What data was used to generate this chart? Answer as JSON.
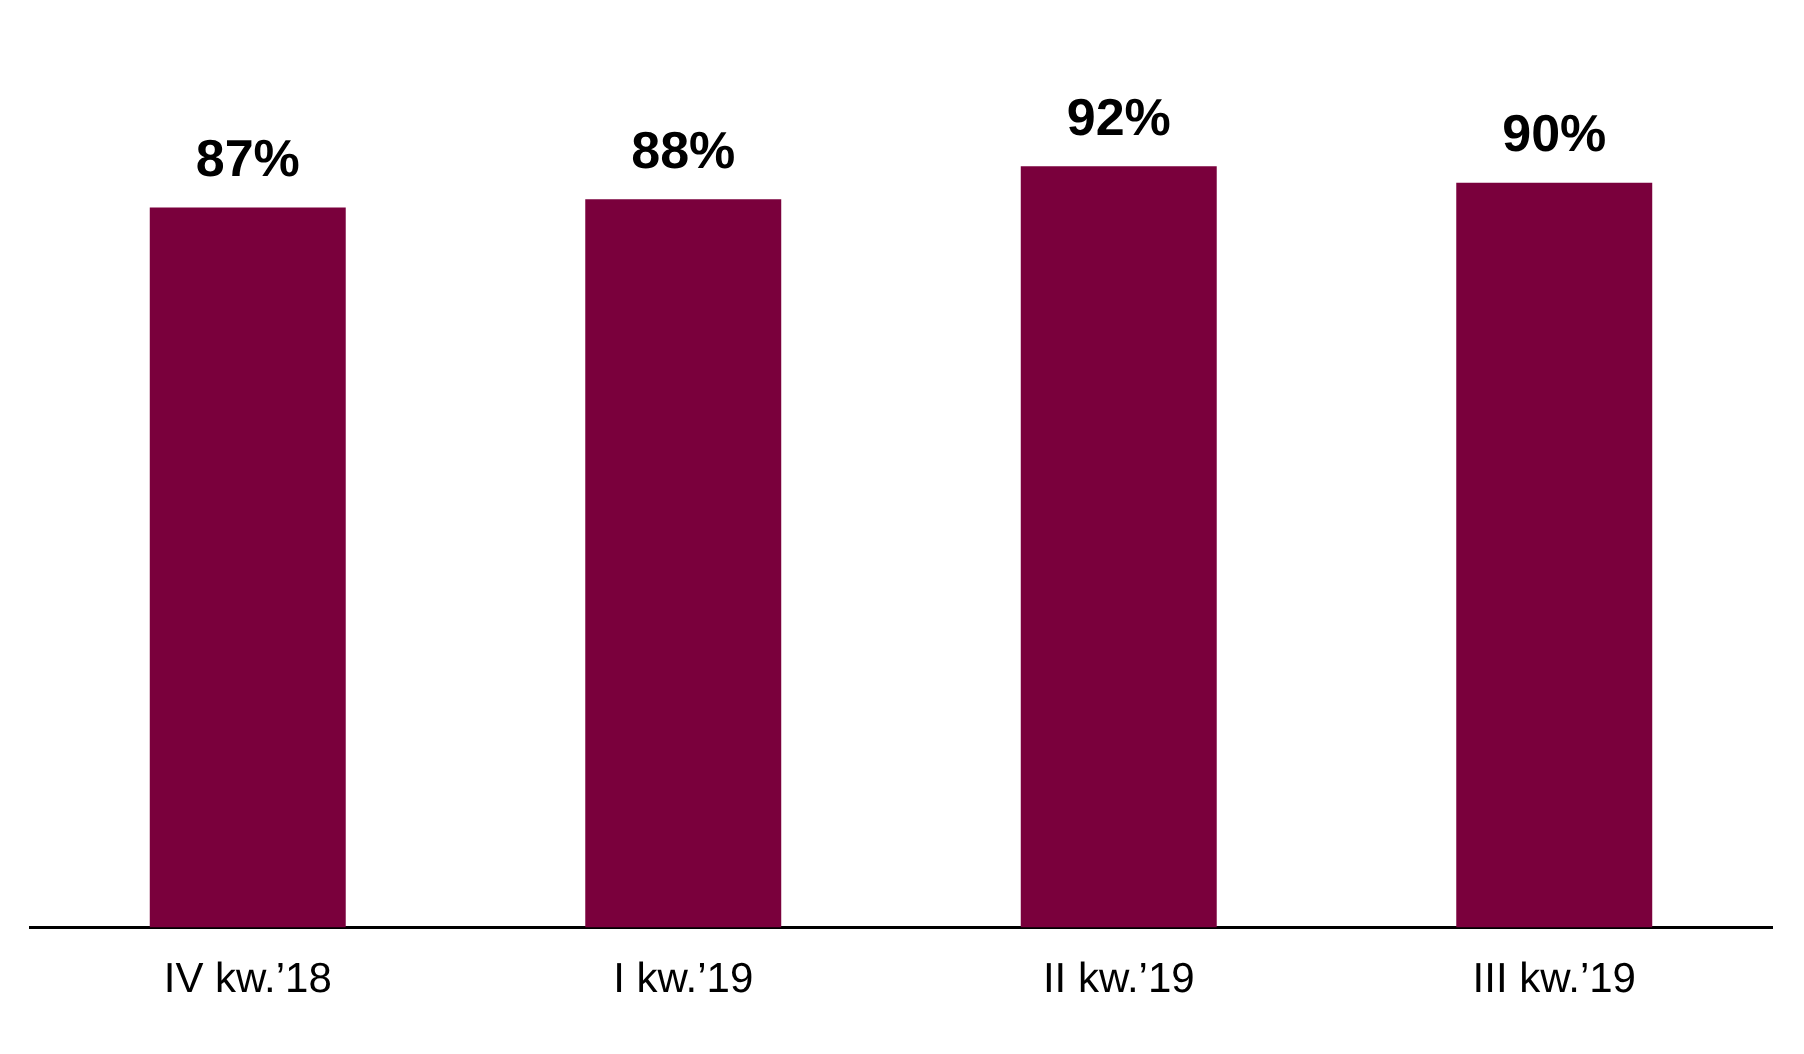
{
  "chart_data": {
    "type": "bar",
    "categories": [
      "IV kw.’18",
      "I kw.’19",
      "II kw.’19",
      "III kw.’19"
    ],
    "values": [
      87,
      88,
      92,
      90
    ],
    "color": "#7a003c",
    "data_labels": true,
    "value_labels": [
      "87%",
      "88%",
      "92%",
      "90%"
    ],
    "grid": false,
    "legend": false
  }
}
